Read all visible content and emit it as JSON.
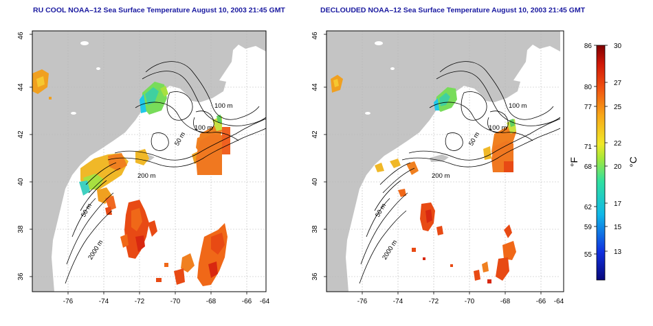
{
  "panels": [
    {
      "title": "RU COOL NOAA–12 Sea Surface Temperature August 10, 2003 21:45 GMT"
    },
    {
      "title": "DECLOUDED NOAA–12 Sea Surface Temperature August 10, 2003 21:45 GMT"
    }
  ],
  "axes": {
    "x_ticks": [
      "-76",
      "-74",
      "-72",
      "-70",
      "-68",
      "-66",
      "-64"
    ],
    "y_ticks": [
      "36",
      "38",
      "40",
      "42",
      "44",
      "46"
    ]
  },
  "contours": {
    "left": [
      "100 m",
      "100 m",
      "50 m",
      "200 m",
      "50 m",
      "2000 m"
    ],
    "right": [
      "100 m",
      "100 m",
      "50 m",
      "200 m",
      "50 m",
      "2000 m"
    ]
  },
  "colorbar": {
    "f_label": "°F",
    "c_label": "°C",
    "f_ticks": [
      "86",
      "80",
      "77",
      "71",
      "68",
      "62",
      "59",
      "55"
    ],
    "c_ticks": [
      "30",
      "27",
      "25",
      "22",
      "20",
      "17",
      "15",
      "13"
    ]
  },
  "colors": {
    "land": "#c4c4c4",
    "title": "#1a1aa0"
  }
}
